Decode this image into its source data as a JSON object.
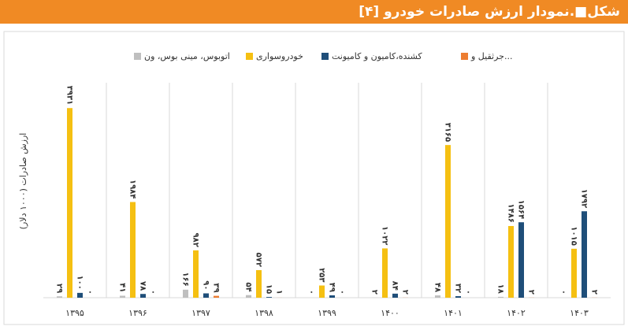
{
  "chart_data": {
    "type": "bar",
    "title": "شکل■.نمودار ارزش صادرات خودرو [۴]",
    "y_label": "ارزش صادرات (۱۰۰۰ دلار)",
    "categories": [
      "۱۳۹۵",
      "۱۳۹۶",
      "۱۳۹۷",
      "۱۳۹۸",
      "۱۳۹۹",
      "۱۴۰۰",
      "۱۴۰۱",
      "۱۴۰۲",
      "۱۴۰۳"
    ],
    "ylim": [
      0,
      4000
    ],
    "series": [
      {
        "name": "اتوبوس، مینی بوس، ون",
        "color": "#bfbfbf",
        "values": [
          29,
          41,
          166,
          54,
          0,
          2,
          48,
          18,
          0
        ],
        "value_labels": [
          "۲۹",
          "۴۱",
          "۱۶۶",
          "۵۴",
          "۰",
          "۲",
          "۴۸",
          "۱۸",
          "۰"
        ]
      },
      {
        "name": "خودروسواری",
        "color": "#f5c012",
        "values": [
          3931,
          1984,
          982,
          572,
          253,
          1022,
          3165,
          1486,
          1015
        ],
        "value_labels": [
          "۳۹۳۱",
          "۱۹۸۴",
          "۹۸۲",
          "۵۷۲",
          "۲۵۳",
          "۱۰۲۲",
          "۳۱۶۵",
          "۱۴۸۶",
          "۱۰۱۵"
        ]
      },
      {
        "name": "کشنده،کامیون و کامیونت",
        "color": "#1f4e79",
        "values": [
          100,
          78,
          90,
          15,
          49,
          84,
          32,
          1564,
          1792
        ],
        "value_labels": [
          "۱۰۰",
          "۷۸",
          "۹۰",
          "۱۵",
          "۴۹",
          "۸۴",
          "۳۲",
          "۱۵۶۴",
          "۱۷۹۲"
        ]
      },
      {
        "name": "جرثقیل و...",
        "color": "#ed7d31",
        "values": [
          0,
          0,
          39,
          1,
          0,
          2,
          0,
          2,
          2
        ],
        "value_labels": [
          "۰",
          "۰",
          "۳۹",
          "۱",
          "۰",
          "۲",
          "۰",
          "۲",
          "۲"
        ]
      }
    ]
  }
}
